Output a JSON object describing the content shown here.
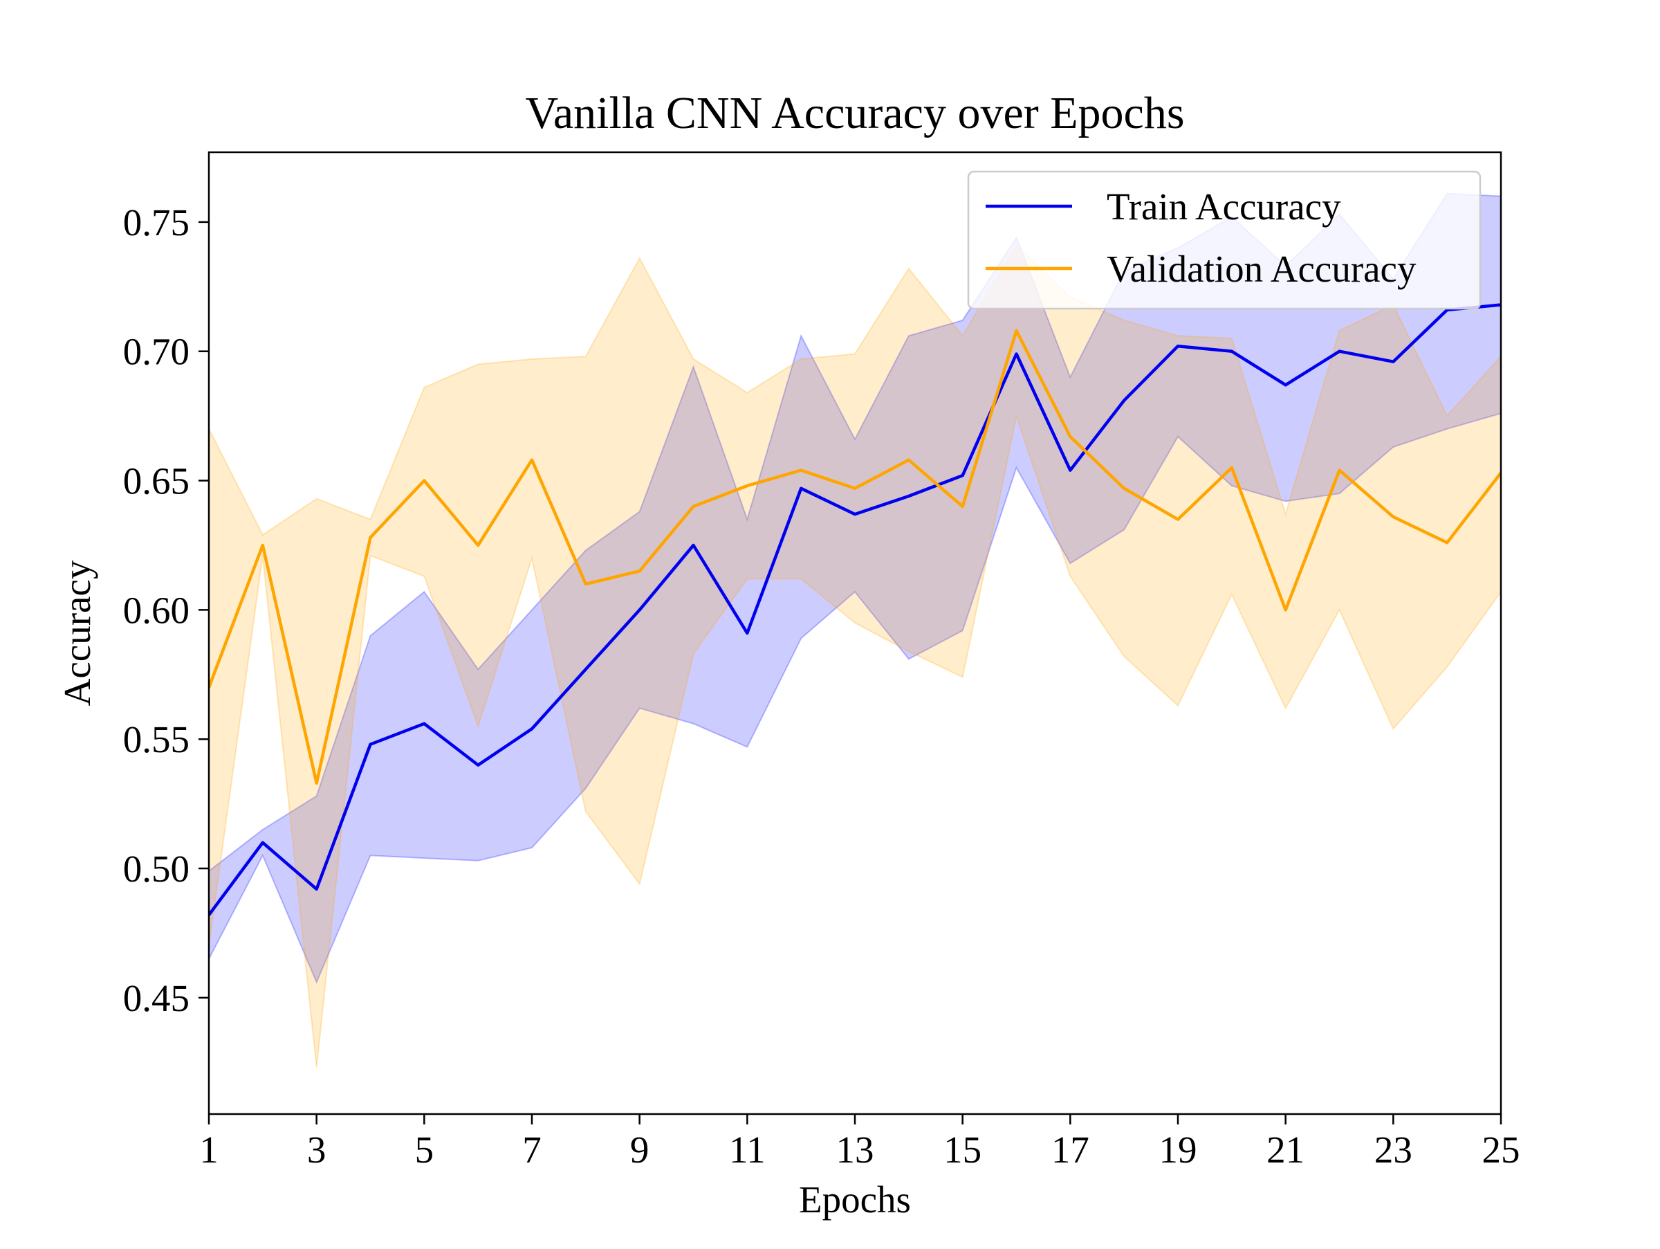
{
  "chart_data": {
    "type": "line",
    "title": "Vanilla CNN Accuracy over Epochs",
    "xlabel": "Epochs",
    "ylabel": "Accuracy",
    "xlim": [
      1,
      25
    ],
    "ylim": [
      0.405,
      0.777
    ],
    "xticks": [
      1,
      3,
      5,
      7,
      9,
      11,
      13,
      15,
      17,
      19,
      21,
      23,
      25
    ],
    "xtick_labels": [
      "1",
      "3",
      "5",
      "7",
      "9",
      "11",
      "13",
      "15",
      "17",
      "19",
      "21",
      "23",
      "25"
    ],
    "yticks": [
      0.45,
      0.5,
      0.55,
      0.6,
      0.65,
      0.7,
      0.75
    ],
    "ytick_labels": [
      "0.45",
      "0.50",
      "0.55",
      "0.60",
      "0.65",
      "0.70",
      "0.75"
    ],
    "grid": false,
    "legend_position": "top-right",
    "x": [
      1,
      2,
      3,
      4,
      5,
      6,
      7,
      8,
      9,
      10,
      11,
      12,
      13,
      14,
      15,
      16,
      17,
      18,
      19,
      20,
      21,
      22,
      23,
      24,
      25
    ],
    "series": [
      {
        "name": "Train Accuracy",
        "color": "#0000ee",
        "band_color": "#0000ff",
        "values": [
          0.482,
          0.51,
          0.492,
          0.548,
          0.556,
          0.54,
          0.554,
          0.577,
          0.6,
          0.625,
          0.591,
          0.647,
          0.637,
          0.644,
          0.652,
          0.699,
          0.654,
          0.681,
          0.702,
          0.7,
          0.687,
          0.7,
          0.696,
          0.716,
          0.718
        ],
        "upper": [
          0.499,
          0.515,
          0.528,
          0.59,
          0.607,
          0.577,
          0.6,
          0.623,
          0.638,
          0.694,
          0.635,
          0.706,
          0.666,
          0.706,
          0.712,
          0.744,
          0.69,
          0.731,
          0.74,
          0.752,
          0.733,
          0.753,
          0.728,
          0.761,
          0.76
        ],
        "lower": [
          0.465,
          0.505,
          0.456,
          0.505,
          0.504,
          0.503,
          0.508,
          0.531,
          0.562,
          0.556,
          0.547,
          0.589,
          0.607,
          0.581,
          0.592,
          0.655,
          0.618,
          0.631,
          0.667,
          0.648,
          0.642,
          0.645,
          0.663,
          0.67,
          0.676
        ]
      },
      {
        "name": "Validation Accuracy",
        "color": "#ffa500",
        "band_color": "#ffa500",
        "values": [
          0.57,
          0.625,
          0.533,
          0.628,
          0.65,
          0.625,
          0.658,
          0.61,
          0.615,
          0.64,
          0.648,
          0.654,
          0.647,
          0.658,
          0.64,
          0.708,
          0.667,
          0.647,
          0.635,
          0.655,
          0.6,
          0.654,
          0.636,
          0.626,
          0.653
        ],
        "upper": [
          0.67,
          0.629,
          0.643,
          0.635,
          0.686,
          0.695,
          0.697,
          0.698,
          0.736,
          0.697,
          0.684,
          0.697,
          0.699,
          0.732,
          0.706,
          0.741,
          0.721,
          0.712,
          0.706,
          0.705,
          0.637,
          0.708,
          0.718,
          0.675,
          0.698
        ],
        "lower": [
          0.47,
          0.621,
          0.423,
          0.621,
          0.613,
          0.555,
          0.62,
          0.522,
          0.494,
          0.583,
          0.612,
          0.612,
          0.595,
          0.584,
          0.574,
          0.675,
          0.613,
          0.582,
          0.563,
          0.606,
          0.562,
          0.6,
          0.554,
          0.578,
          0.607
        ]
      }
    ]
  }
}
